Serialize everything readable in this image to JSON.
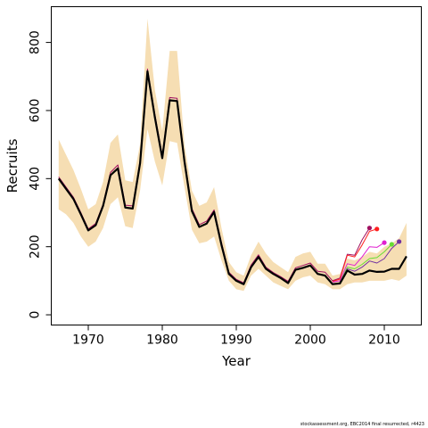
{
  "chart_data": {
    "type": "line",
    "xlabel": "Year",
    "ylabel": "Recruits",
    "xlim": [
      1965,
      2015
    ],
    "ylim": [
      -30,
      905
    ],
    "x_ticks": [
      1970,
      1980,
      1990,
      2000,
      2010
    ],
    "y_ticks": [
      0,
      200,
      400,
      600,
      800
    ],
    "band": {
      "color": "#f6deb3",
      "x": [
        1966,
        1967,
        1968,
        1969,
        1970,
        1971,
        1972,
        1973,
        1974,
        1975,
        1976,
        1977,
        1978,
        1979,
        1980,
        1981,
        1982,
        1983,
        1984,
        1985,
        1986,
        1987,
        1988,
        1989,
        1990,
        1991,
        1992,
        1993,
        1994,
        1995,
        1996,
        1997,
        1998,
        1999,
        2000,
        2001,
        2002,
        2003,
        2004,
        2005,
        2006,
        2007,
        2008,
        2009,
        2010,
        2011,
        2012,
        2013
      ],
      "upper": [
        515,
        470,
        425,
        370,
        310,
        325,
        390,
        505,
        530,
        395,
        390,
        500,
        870,
        660,
        540,
        775,
        775,
        500,
        365,
        320,
        330,
        375,
        255,
        155,
        125,
        115,
        175,
        215,
        180,
        155,
        140,
        125,
        170,
        180,
        185,
        150,
        150,
        115,
        120,
        165,
        160,
        170,
        185,
        180,
        200,
        210,
        225,
        270
      ],
      "lower": [
        310,
        295,
        270,
        230,
        200,
        215,
        255,
        325,
        345,
        260,
        255,
        365,
        545,
        450,
        380,
        510,
        505,
        375,
        250,
        210,
        215,
        230,
        160,
        100,
        75,
        70,
        115,
        135,
        115,
        95,
        85,
        75,
        100,
        110,
        115,
        95,
        90,
        75,
        75,
        90,
        95,
        95,
        100,
        100,
        100,
        105,
        100,
        115
      ]
    },
    "series": [
      {
        "color": "#000000",
        "x": [
          1966,
          1967,
          1968,
          1969,
          1970,
          1971,
          1972,
          1973,
          1974,
          1975,
          1976,
          1977,
          1978,
          1979,
          1980,
          1981,
          1982,
          1983,
          1984,
          1985,
          1986,
          1987,
          1988,
          1989,
          1990,
          1991,
          1992,
          1993,
          1994,
          1995,
          1996,
          1997,
          1998,
          1999,
          2000,
          2001,
          2002,
          2003,
          2004,
          2005,
          2006,
          2007,
          2008,
          2009,
          2010,
          2011,
          2012,
          2013
        ],
        "values": [
          400,
          370,
          340,
          295,
          248,
          263,
          320,
          410,
          430,
          315,
          312,
          445,
          715,
          580,
          460,
          630,
          628,
          450,
          305,
          258,
          268,
          302,
          205,
          120,
          100,
          90,
          140,
          170,
          135,
          120,
          108,
          93,
          132,
          138,
          145,
          120,
          115,
          90,
          92,
          130,
          118,
          120,
          130,
          126,
          127,
          135,
          135,
          172
        ]
      },
      {
        "color": "#a01060",
        "x": [
          1966,
          1967,
          1968,
          1969,
          1970,
          1971,
          1972,
          1973,
          1974,
          1975,
          1976,
          1977,
          1978,
          1979,
          1980,
          1981,
          1982,
          1983,
          1984,
          1985,
          1986,
          1987,
          1988,
          1989,
          1990,
          1991,
          1992,
          1993,
          1994,
          1995,
          1996,
          1997,
          1998,
          1999,
          2000,
          2001,
          2002,
          2003,
          2004,
          2005,
          2006,
          2007,
          2008
        ],
        "values": [
          405,
          375,
          345,
          300,
          252,
          268,
          325,
          418,
          440,
          322,
          320,
          452,
          722,
          588,
          468,
          638,
          636,
          458,
          312,
          265,
          275,
          308,
          212,
          125,
          104,
          94,
          146,
          176,
          140,
          124,
          112,
          98,
          138,
          145,
          152,
          128,
          125,
          100,
          108,
          178,
          175,
          220,
          255
        ],
        "end_marker": true
      },
      {
        "color": "#ff2020",
        "x": [
          2003,
          2004,
          2005,
          2006,
          2007,
          2008,
          2009
        ],
        "values": [
          98,
          105,
          175,
          170,
          205,
          245,
          252
        ],
        "end_marker": true
      },
      {
        "color": "#e020d0",
        "x": [
          2003,
          2004,
          2005,
          2006,
          2007,
          2008,
          2009,
          2010
        ],
        "values": [
          96,
          100,
          150,
          145,
          170,
          200,
          198,
          212
        ],
        "end_marker": true
      },
      {
        "color": "#66dd33",
        "x": [
          2004,
          2005,
          2006,
          2007,
          2008,
          2009,
          2010,
          2011
        ],
        "values": [
          95,
          140,
          135,
          148,
          165,
          168,
          185,
          207
        ],
        "end_marker": true
      },
      {
        "color": "#7030a0",
        "x": [
          2004,
          2005,
          2006,
          2007,
          2008,
          2009,
          2010,
          2011,
          2012
        ],
        "values": [
          94,
          135,
          128,
          140,
          158,
          152,
          165,
          195,
          215
        ],
        "end_marker": true
      }
    ]
  },
  "footnote": "stockassessment.org, EBC2014 final resurrected, r4423"
}
